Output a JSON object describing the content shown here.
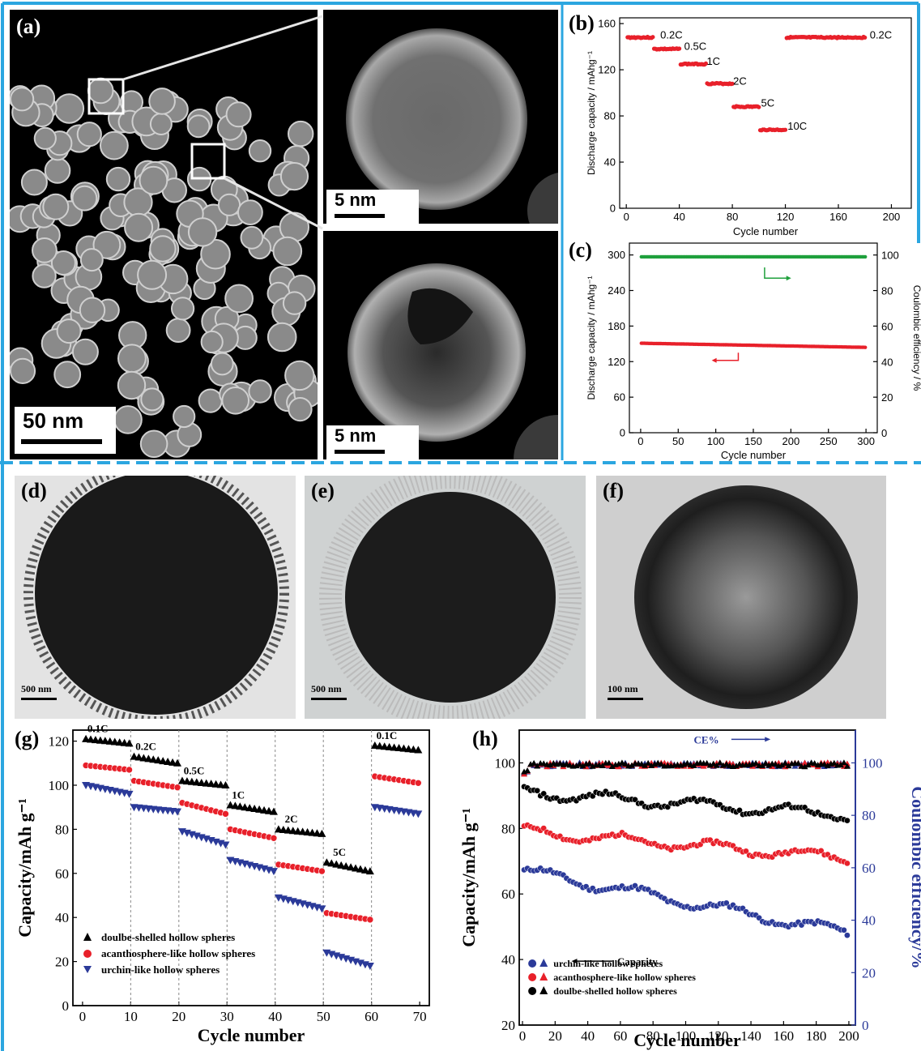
{
  "panels": {
    "a": {
      "label": "(a)",
      "scale_main": "50 nm",
      "scale_top": "5 nm",
      "scale_bottom": "5 nm"
    },
    "b": {
      "label": "(b)"
    },
    "c": {
      "label": "(c)"
    },
    "d": {
      "label": "(d)",
      "scale": "500 nm"
    },
    "e": {
      "label": "(e)",
      "scale": "500 nm"
    },
    "f": {
      "label": "(f)",
      "scale": "100 nm"
    },
    "g": {
      "label": "(g)"
    },
    "h": {
      "label": "(h)"
    }
  },
  "colors": {
    "frame": "#2ba6e0",
    "red": "#e8202a",
    "green": "#1fa03c",
    "navy": "#2b3a99",
    "black": "#000000"
  },
  "chart_data": [
    {
      "id": "b",
      "type": "scatter",
      "xlabel": "Cycle number",
      "ylabel": "Discharge capacity / mAhg⁻¹",
      "xlim": [
        -5,
        215
      ],
      "ylim": [
        0,
        165
      ],
      "xticks": [
        0,
        40,
        80,
        120,
        160,
        200
      ],
      "yticks": [
        0,
        40,
        80,
        120,
        160
      ],
      "series": [
        {
          "segments": [
            {
              "rate": "0.2C",
              "x": [
                1,
                20
              ],
              "y": 148
            },
            {
              "rate": "0.5C",
              "x": [
                21,
                40
              ],
              "y": 138
            },
            {
              "rate": "1C",
              "x": [
                41,
                60
              ],
              "y": 125
            },
            {
              "rate": "2C",
              "x": [
                61,
                80
              ],
              "y": 108
            },
            {
              "rate": "5C",
              "x": [
                81,
                100
              ],
              "y": 88
            },
            {
              "rate": "10C",
              "x": [
                101,
                120
              ],
              "y": 68
            },
            {
              "rate": "0.2C",
              "x": [
                121,
                180
              ],
              "y": 148
            }
          ]
        }
      ],
      "annotations": [
        "0.2C",
        "0.5C",
        "1C",
        "2C",
        "5C",
        "10C",
        "0.2C"
      ]
    },
    {
      "id": "c",
      "type": "scatter",
      "xlabel": "Cycle number",
      "ylabel": "Discharge capacity / mAhg⁻¹",
      "y2label": "Coulombic efficiency / %",
      "xlim": [
        -15,
        315
      ],
      "ylim": [
        0,
        320
      ],
      "y2lim": [
        0,
        106.7
      ],
      "xticks": [
        0,
        50,
        100,
        150,
        200,
        250,
        300
      ],
      "yticks": [
        0,
        60,
        120,
        180,
        240,
        300
      ],
      "y2ticks": [
        0,
        20,
        40,
        60,
        80,
        100
      ],
      "series": [
        {
          "axis": "y",
          "x": [
            1,
            300
          ],
          "y": [
            151,
            144
          ]
        },
        {
          "axis": "y2",
          "x": [
            1,
            300
          ],
          "y": [
            99,
            99
          ]
        }
      ]
    },
    {
      "id": "g",
      "type": "scatter",
      "xlabel": "Cycle number",
      "ylabel": "Capacity/mAh g⁻¹",
      "xlim": [
        -2,
        72
      ],
      "ylim": [
        0,
        125
      ],
      "xticks": [
        0,
        10,
        20,
        30,
        40,
        50,
        60,
        70
      ],
      "yticks": [
        0,
        20,
        40,
        60,
        80,
        100,
        120
      ],
      "rate_labels": [
        "0.1C",
        "0.2C",
        "0.5C",
        "1C",
        "2C",
        "5C",
        "0.1C"
      ],
      "series": [
        {
          "name": "doulbe-shelled hollow spheres",
          "segments": [
            [
              121,
              119
            ],
            [
              113,
              110
            ],
            [
              102,
              100
            ],
            [
              91,
              88
            ],
            [
              80,
              78
            ],
            [
              65,
              61
            ],
            [
              118,
              116
            ]
          ]
        },
        {
          "name": "acanthosphere-like hollow spheres",
          "segments": [
            [
              109,
              107
            ],
            [
              102,
              99
            ],
            [
              92,
              87
            ],
            [
              80,
              76
            ],
            [
              64,
              61
            ],
            [
              42,
              39
            ],
            [
              104,
              101
            ]
          ]
        },
        {
          "name": "urchin-like hollow spheres",
          "segments": [
            [
              100,
              96
            ],
            [
              90,
              88
            ],
            [
              79,
              73
            ],
            [
              66,
              61
            ],
            [
              49,
              44
            ],
            [
              24,
              18
            ],
            [
              90,
              87
            ]
          ]
        }
      ]
    },
    {
      "id": "h",
      "type": "scatter",
      "xlabel": "Cycle number",
      "ylabel": "Capacity/mAh g⁻¹",
      "y2label": "Coulombic efficiency/%",
      "xlim": [
        -2,
        204
      ],
      "ylim": [
        20,
        110
      ],
      "y2lim": [
        0,
        112.5
      ],
      "xticks": [
        0,
        20,
        40,
        60,
        80,
        100,
        120,
        140,
        160,
        180,
        200
      ],
      "yticks": [
        20,
        40,
        60,
        80,
        100
      ],
      "y2ticks": [
        0,
        20,
        40,
        60,
        80,
        100
      ],
      "annotations": {
        "capacity": "Capacity",
        "ce": "CE%"
      },
      "series": [
        {
          "name": "urchin-like hollow spheres",
          "start": 67,
          "end": 48
        },
        {
          "name": "acanthosphere-like hollow spheres",
          "start": 79,
          "end": 71
        },
        {
          "name": "doulbe-shelled hollow spheres",
          "start": 91,
          "end": 84
        }
      ]
    }
  ]
}
